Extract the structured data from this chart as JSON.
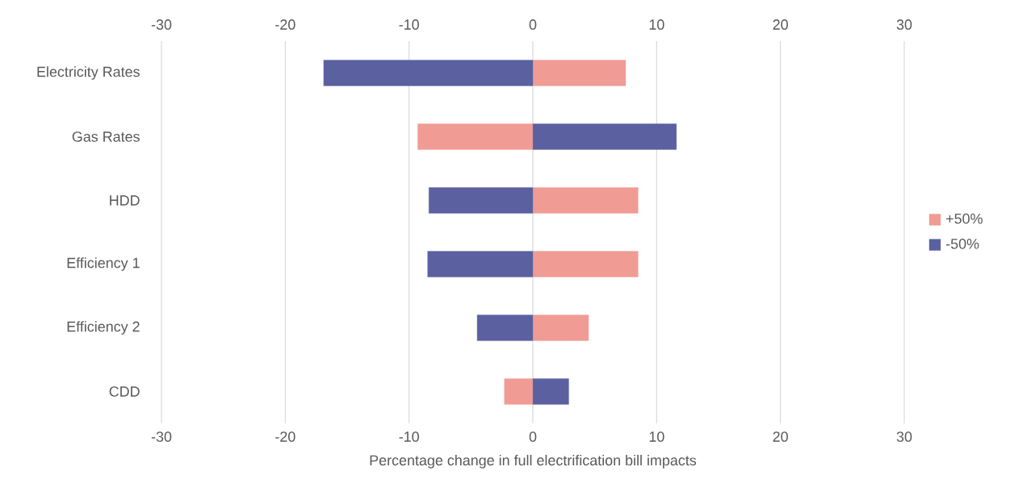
{
  "chart_data": {
    "type": "bar",
    "orientation": "horizontal",
    "xlabel": "Percentage change in full electrification bill impacts",
    "categories": [
      "Electricity Rates",
      "Gas Rates",
      "HDD",
      "Efficiency 1",
      "Efficiency 2",
      "CDD"
    ],
    "series": [
      {
        "name": "+50%",
        "color": "#f09b94",
        "values": [
          7.5,
          -9.3,
          8.5,
          8.5,
          4.5,
          -2.3
        ]
      },
      {
        "name": "-50%",
        "color": "#5a60a0",
        "values": [
          -16.9,
          11.6,
          -8.4,
          -8.5,
          -4.5,
          2.9
        ]
      }
    ],
    "xlim": [
      -30,
      30
    ],
    "xticks": [
      -30,
      -20,
      -10,
      0,
      10,
      20,
      30
    ],
    "x2lim": [
      -30,
      30
    ],
    "x2ticks": [
      -30,
      -20,
      -10,
      0,
      10,
      20,
      30
    ],
    "grid": "x",
    "legend": "right",
    "stacked": true
  }
}
